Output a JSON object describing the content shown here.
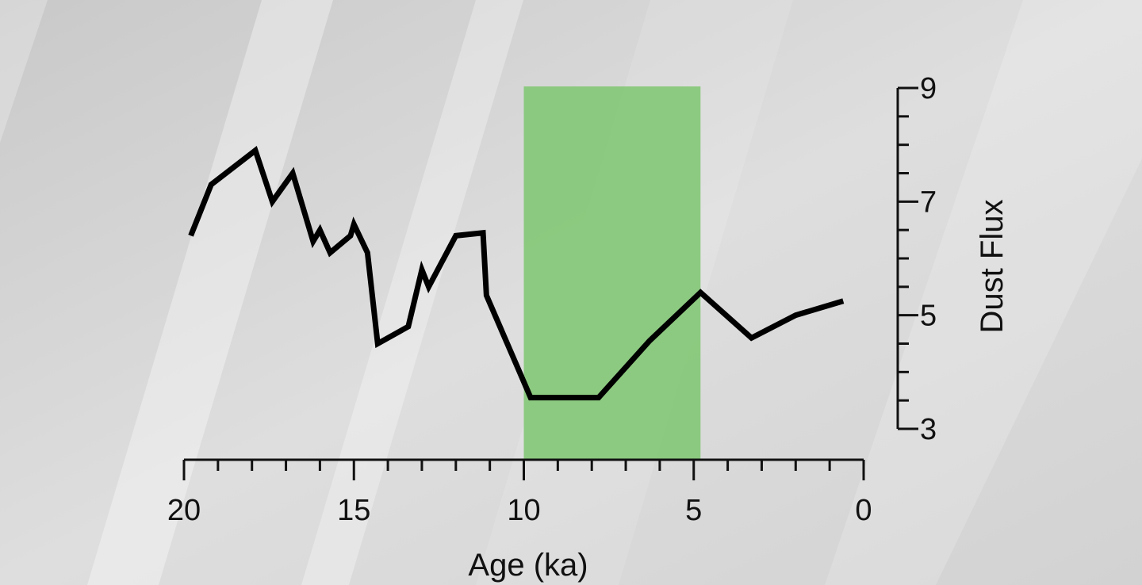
{
  "chart_data": {
    "type": "line",
    "xlabel": "Age (ka)",
    "ylabel": "Dust Flux",
    "xlim": [
      20,
      0
    ],
    "ylim": [
      3,
      9
    ],
    "x_reversed": true,
    "x_ticks_major": [
      20,
      15,
      10,
      5,
      0
    ],
    "x_tick_labels": [
      "20",
      "15",
      "10",
      "5",
      "0"
    ],
    "x_minor_step": 1,
    "y_ticks_major": [
      3,
      5,
      7,
      9
    ],
    "y_tick_labels": [
      "3",
      "5",
      "7",
      "9"
    ],
    "y_minor_step": 0.5,
    "y_axis_position": "right",
    "grid": false,
    "highlight_band": {
      "x_start": 10,
      "x_end": 4.8,
      "color": "#86c878"
    },
    "line_color": "#000000",
    "series": [
      {
        "x": [
          19.8,
          19.2,
          17.9,
          17.4,
          16.8,
          16.2,
          16.0,
          15.7,
          15.1,
          15.0,
          14.6,
          14.3,
          13.4,
          13.0,
          12.8,
          12.0,
          11.2,
          11.1,
          9.8,
          7.8,
          6.3,
          4.8,
          3.3,
          2.0,
          0.6
        ],
        "y": [
          6.4,
          7.3,
          7.9,
          7.0,
          7.5,
          6.3,
          6.5,
          6.1,
          6.4,
          6.6,
          6.1,
          4.5,
          4.8,
          5.8,
          5.5,
          6.4,
          6.45,
          5.35,
          3.55,
          3.55,
          4.55,
          5.4,
          4.6,
          5.0,
          5.25
        ]
      }
    ]
  }
}
